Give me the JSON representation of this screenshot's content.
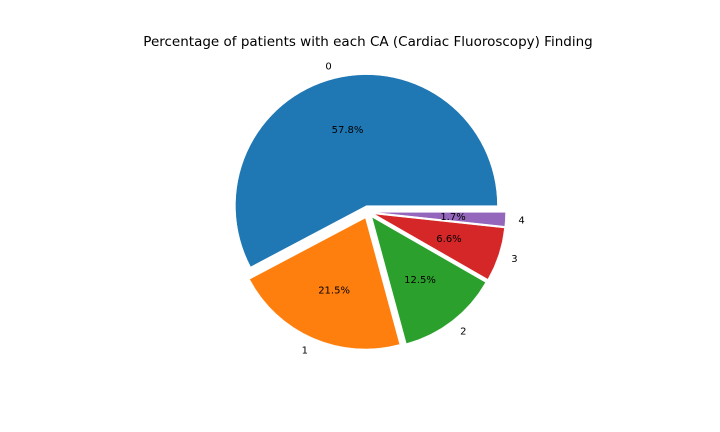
{
  "chart_data": {
    "type": "pie",
    "title": "Percentage of patients with each CA (Cardiac Fluoroscopy) Finding",
    "categories": [
      "0",
      "1",
      "2",
      "3",
      "4"
    ],
    "values": [
      57.8,
      21.5,
      12.5,
      6.6,
      1.7
    ],
    "value_labels": [
      "57.8%",
      "21.5%",
      "12.5%",
      "6.6%",
      "1.7%"
    ],
    "colors": [
      "#1f77b4",
      "#ff7f0e",
      "#2ca02c",
      "#d62728",
      "#9467bd"
    ],
    "explode": [
      0.05,
      0.05,
      0.05,
      0.05,
      0.05
    ],
    "start_angle": 0,
    "direction": "counterclockwise",
    "legend": "none"
  }
}
